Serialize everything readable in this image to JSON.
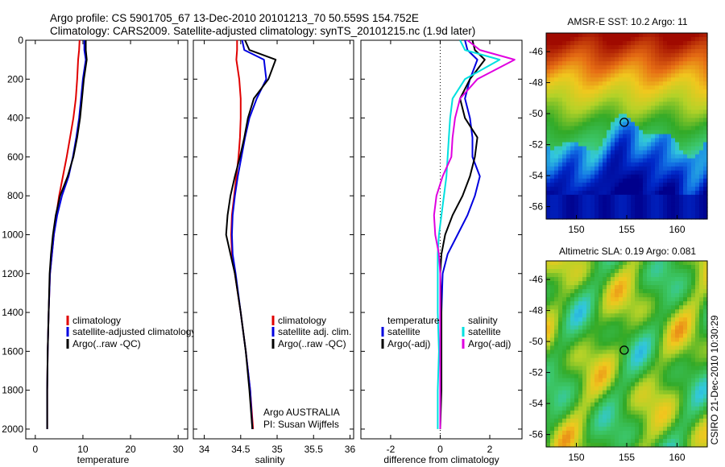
{
  "header": {
    "line1": "Argo profile: CS 5901705_67 13-Dec-2010 20101213_70 50.559S 154.752E",
    "line2": "Climatology: CARS2009. Satellite-adjusted climatology: synTS_20101215.nc (1.9d later)"
  },
  "colors": {
    "climatology": "#e00000",
    "satellite": "#0000e0",
    "argo": "#000000",
    "sal_satellite": "#00e0e0",
    "sal_argo": "#e000e0"
  },
  "chart_data": [
    {
      "type": "line",
      "xlabel": "temperature",
      "ylabel": "",
      "xlim": [
        -2,
        32
      ],
      "ylim": [
        2050,
        0
      ],
      "y_reversed": true,
      "xticks": [
        0,
        10,
        20,
        30
      ],
      "yticks": [
        0,
        200,
        400,
        600,
        800,
        1000,
        1200,
        1400,
        1600,
        1800,
        2000
      ],
      "legend": {
        "position": "lower-right",
        "entries": [
          "climatology",
          "satellite-adjusted climatology",
          "Argo(..raw -QC)"
        ]
      },
      "series": [
        {
          "name": "climatology",
          "color": "#e00000",
          "x": [
            9.3,
            9.2,
            9.0,
            8.8,
            8.5,
            8.0,
            7.3,
            6.6,
            5.8,
            5.0,
            4.4,
            3.9,
            3.5,
            3.1,
            2.8,
            2.6,
            2.5,
            2.5
          ],
          "y": [
            0,
            50,
            100,
            200,
            300,
            400,
            500,
            600,
            700,
            800,
            900,
            1000,
            1100,
            1200,
            1400,
            1600,
            1800,
            2000
          ]
        },
        {
          "name": "satellite-adjusted climatology",
          "color": "#0000e0",
          "x": [
            10.3,
            10.3,
            10.6,
            10.0,
            9.6,
            9.2,
            8.6,
            7.9,
            7.0,
            5.6,
            4.6,
            3.9,
            3.5,
            3.1,
            2.8,
            2.6,
            2.5,
            2.5
          ],
          "y": [
            0,
            50,
            100,
            200,
            300,
            400,
            500,
            600,
            700,
            800,
            900,
            1000,
            1100,
            1200,
            1400,
            1600,
            1800,
            2000
          ]
        },
        {
          "name": "Argo(..raw -QC)",
          "color": "#000000",
          "x": [
            10.6,
            10.6,
            10.8,
            10.2,
            9.8,
            9.4,
            8.8,
            8.0,
            6.8,
            5.2,
            4.3,
            3.7,
            3.3,
            3.0,
            2.8,
            2.6,
            2.5,
            2.5
          ],
          "y": [
            0,
            50,
            100,
            200,
            300,
            400,
            500,
            600,
            700,
            800,
            900,
            1000,
            1100,
            1200,
            1400,
            1600,
            1800,
            2000
          ]
        }
      ]
    },
    {
      "type": "line",
      "xlabel": "salinity",
      "ylabel": "",
      "xlim": [
        33.85,
        36.05
      ],
      "ylim": [
        2050,
        0
      ],
      "y_reversed": true,
      "xticks": [
        34,
        34.5,
        35,
        35.5,
        36
      ],
      "xtick_labels": [
        "34",
        "34.5",
        "35",
        "35.5",
        "36"
      ],
      "legend": {
        "position": "lower-right",
        "entries": [
          "climatology",
          "satellite adj. clim.",
          "Argo(..raw -QC)"
        ]
      },
      "annotation": [
        "Argo AUSTRALIA",
        "PI: Susan Wijffels"
      ],
      "series": [
        {
          "name": "climatology",
          "color": "#e00000",
          "x": [
            34.45,
            34.45,
            34.44,
            34.48,
            34.5,
            34.5,
            34.49,
            34.47,
            34.44,
            34.41,
            34.38,
            34.37,
            34.38,
            34.42,
            34.5,
            34.57,
            34.63,
            34.67
          ],
          "y": [
            0,
            50,
            100,
            200,
            300,
            400,
            500,
            600,
            700,
            800,
            900,
            1000,
            1100,
            1200,
            1400,
            1600,
            1800,
            2000
          ]
        },
        {
          "name": "satellite adj. clim.",
          "color": "#0000e0",
          "x": [
            34.52,
            34.55,
            34.82,
            34.85,
            34.72,
            34.62,
            34.56,
            34.51,
            34.46,
            34.42,
            34.39,
            34.38,
            34.39,
            34.43,
            34.5,
            34.57,
            34.63,
            34.66
          ],
          "y": [
            0,
            50,
            100,
            200,
            300,
            400,
            500,
            600,
            700,
            800,
            900,
            1000,
            1100,
            1200,
            1400,
            1600,
            1800,
            2000
          ]
        },
        {
          "name": "Argo(..raw -QC)",
          "color": "#000000",
          "x": [
            34.56,
            34.62,
            34.98,
            34.88,
            34.68,
            34.6,
            34.55,
            34.49,
            34.42,
            34.36,
            34.32,
            34.3,
            34.36,
            34.42,
            34.5,
            34.57,
            34.62,
            34.66
          ],
          "y": [
            0,
            50,
            100,
            200,
            300,
            400,
            500,
            600,
            700,
            800,
            900,
            1000,
            1100,
            1200,
            1400,
            1600,
            1800,
            2000
          ]
        }
      ]
    },
    {
      "type": "line",
      "xlabel": "difference from climatology",
      "ylabel": "",
      "xlim": [
        -3.2,
        3.3
      ],
      "ylim": [
        2050,
        0
      ],
      "y_reversed": true,
      "xticks": [
        -2,
        0,
        2
      ],
      "zero_line": "dotted",
      "legend": {
        "position": "lower-center",
        "columns": [
          {
            "title": "temperature",
            "entries": [
              "satellite",
              "Argo(-adj)"
            ]
          },
          {
            "title": "salinity",
            "entries": [
              "satellite",
              "Argo(-adj)"
            ]
          }
        ]
      },
      "series": [
        {
          "name": "temperature satellite",
          "color": "#0000e0",
          "x": [
            1.0,
            1.1,
            1.5,
            1.2,
            1.0,
            1.2,
            1.3,
            1.3,
            1.6,
            1.4,
            1.1,
            0.7,
            0.3,
            0.1,
            0.05,
            0.05,
            0.0,
            0.0
          ],
          "y": [
            0,
            50,
            100,
            200,
            300,
            400,
            500,
            600,
            700,
            800,
            900,
            1000,
            1100,
            1200,
            1400,
            1600,
            1800,
            2000
          ]
        },
        {
          "name": "temperature Argo(-adj)",
          "color": "#000000",
          "x": [
            1.3,
            1.4,
            1.8,
            1.2,
            0.8,
            1.0,
            1.5,
            1.4,
            1.2,
            0.9,
            0.5,
            0.2,
            0.05,
            0.0,
            0.05,
            0.05,
            0.05,
            0.0
          ],
          "y": [
            0,
            50,
            100,
            200,
            300,
            400,
            500,
            600,
            700,
            800,
            900,
            1000,
            1100,
            1200,
            1400,
            1600,
            1800,
            2000
          ]
        },
        {
          "name": "salinity satellite",
          "color": "#00e0e0",
          "x": [
            0.8,
            1.0,
            2.4,
            1.0,
            0.5,
            0.4,
            0.35,
            0.3,
            0.25,
            0.15,
            0.05,
            -0.05,
            -0.1,
            -0.1,
            -0.1,
            -0.05,
            -0.1,
            -0.1
          ],
          "y": [
            0,
            50,
            100,
            200,
            300,
            400,
            500,
            600,
            700,
            800,
            900,
            1000,
            1100,
            1200,
            1400,
            1600,
            1800,
            2000
          ]
        },
        {
          "name": "salinity Argo(-adj)",
          "color": "#e000e0",
          "x": [
            1.1,
            1.6,
            3.0,
            1.5,
            0.8,
            0.6,
            0.5,
            0.45,
            0.1,
            -0.15,
            -0.25,
            -0.2,
            -0.05,
            0.0,
            0.0,
            0.0,
            0.0,
            0.0
          ],
          "y": [
            0,
            50,
            100,
            200,
            300,
            400,
            500,
            600,
            700,
            800,
            900,
            1000,
            1100,
            1200,
            1400,
            1600,
            1800,
            2000
          ]
        }
      ]
    },
    {
      "type": "heatmap",
      "title": "AMSR-E SST: 10.2 Argo: 11",
      "xlim": [
        147,
        163
      ],
      "ylim": [
        -56.8,
        -44.8
      ],
      "xticks": [
        150,
        155,
        160
      ],
      "yticks": [
        -46,
        -48,
        -50,
        -52,
        -54,
        -56
      ],
      "marker": {
        "lon": 154.75,
        "lat": -50.56
      }
    },
    {
      "type": "heatmap",
      "title": "Altimetric SLA: 0.19 Argo: 0.081",
      "xlim": [
        147,
        163
      ],
      "ylim": [
        -56.8,
        -44.8
      ],
      "xticks": [
        150,
        155,
        160
      ],
      "yticks": [
        -46,
        -48,
        -50,
        -52,
        -54,
        -56
      ],
      "marker": {
        "lon": 154.75,
        "lat": -50.56
      }
    }
  ],
  "side_label": "CSIRO 21-Dec-2010 10:30:29"
}
